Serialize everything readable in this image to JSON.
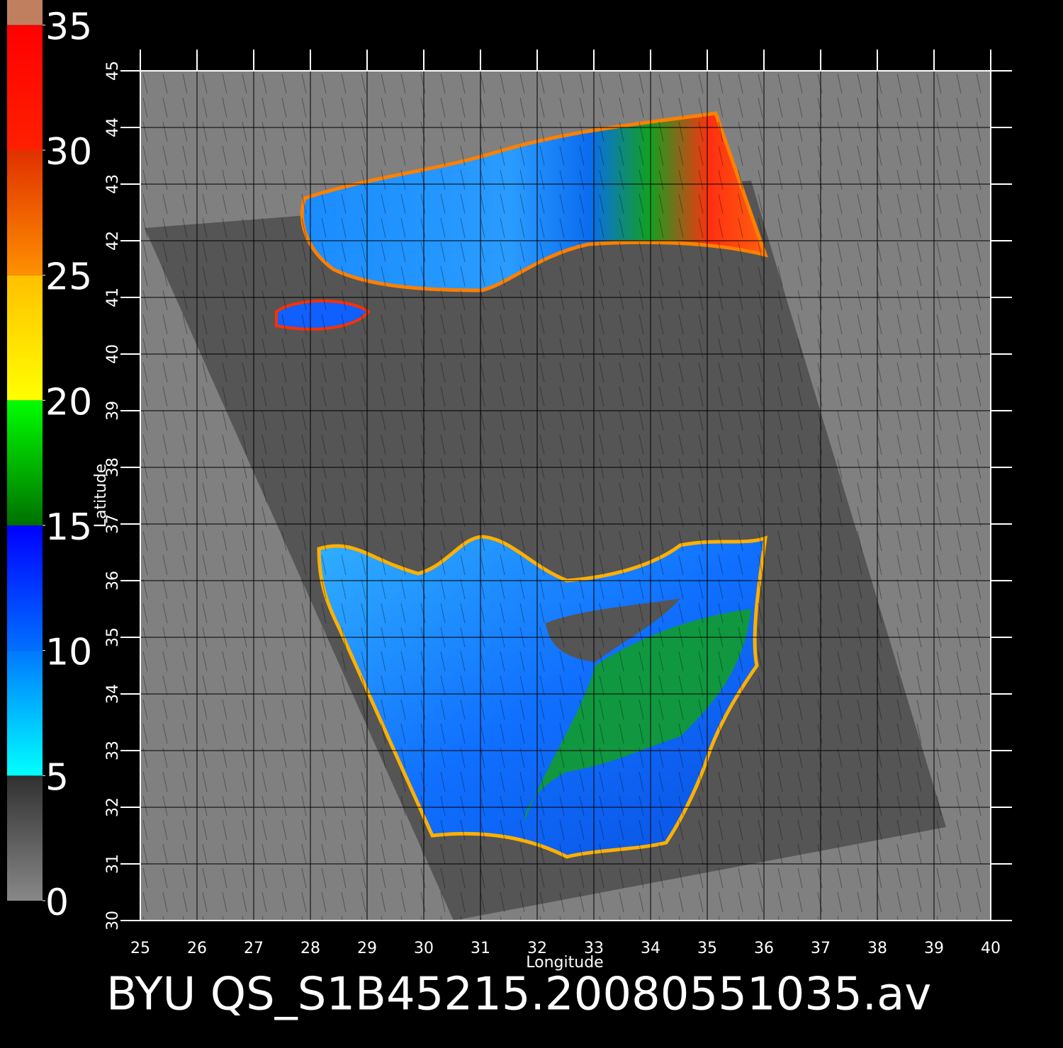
{
  "map": {
    "title": "BYU QS_S1B45215.20080551035.av",
    "xlabel": "Longitude",
    "ylabel": "Latitude",
    "xlim": [
      25,
      40
    ],
    "ylim": [
      30,
      45
    ],
    "xticks": [
      25,
      26,
      27,
      28,
      29,
      30,
      31,
      32,
      33,
      34,
      35,
      36,
      37,
      38,
      39,
      40
    ],
    "yticks": [
      30,
      31,
      32,
      33,
      34,
      35,
      36,
      37,
      38,
      39,
      40,
      41,
      42,
      43,
      44,
      45
    ],
    "grid": true,
    "colorbar": {
      "lim": [
        0,
        36
      ],
      "ticks": [
        0,
        5,
        10,
        15,
        20,
        25,
        30,
        35
      ],
      "segments": [
        {
          "range": [
            0,
            5
          ],
          "colors": [
            "#888888",
            "#303030"
          ]
        },
        {
          "range": [
            5,
            10
          ],
          "colors": [
            "#00ffff",
            "#0078ff"
          ]
        },
        {
          "range": [
            10,
            15
          ],
          "colors": [
            "#0070ff",
            "#0000ff"
          ]
        },
        {
          "range": [
            15,
            20
          ],
          "colors": [
            "#007000",
            "#00ff00"
          ]
        },
        {
          "range": [
            20,
            25
          ],
          "colors": [
            "#ffff00",
            "#ffc000"
          ]
        },
        {
          "range": [
            25,
            30
          ],
          "colors": [
            "#ff9000",
            "#e03000"
          ]
        },
        {
          "range": [
            30,
            35
          ],
          "colors": [
            "#ff2000",
            "#ff0000"
          ]
        },
        {
          "range": [
            35,
            36
          ],
          "colors": [
            "#c08060",
            "#c08060"
          ]
        }
      ]
    }
  }
}
